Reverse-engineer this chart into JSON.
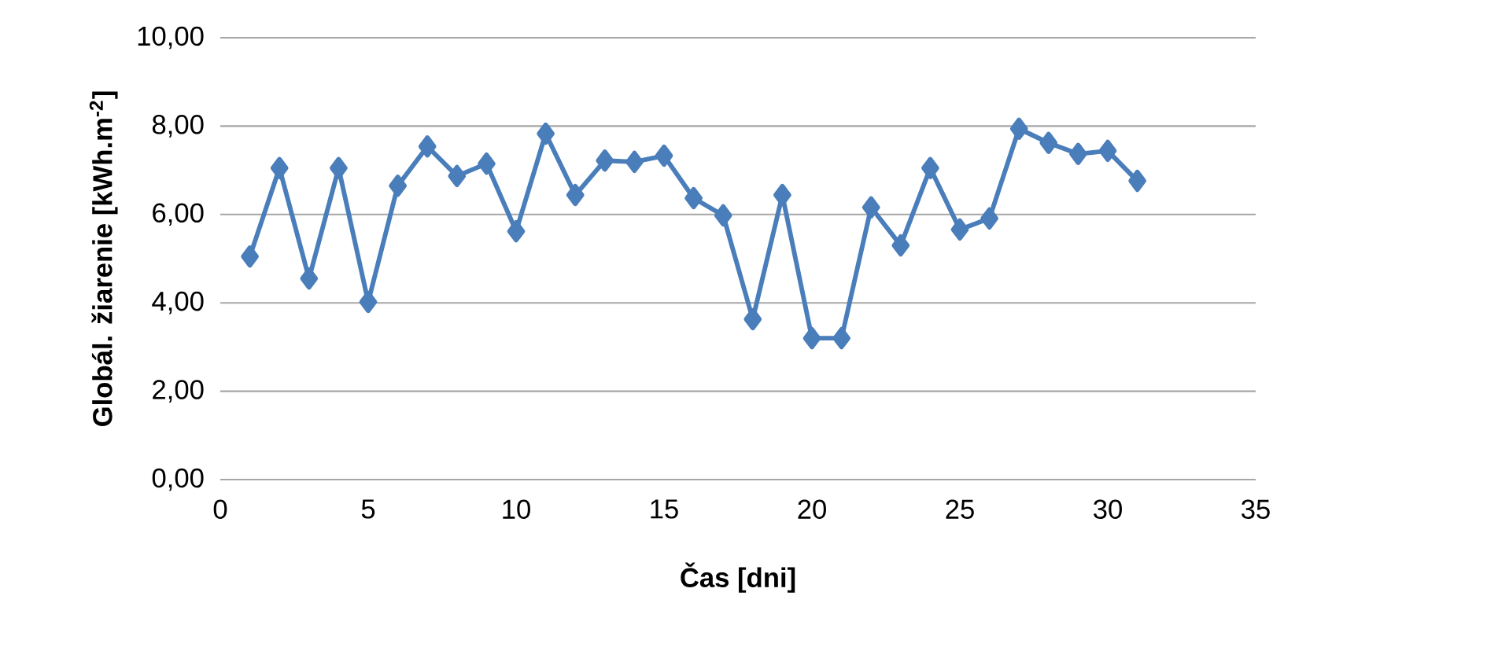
{
  "chart_data": {
    "type": "line",
    "xlabel": "Čas [dni]",
    "ylabel": "Globál. žiarenie [kWh.m$^{-2}$]",
    "x": [
      1,
      2,
      3,
      4,
      5,
      6,
      7,
      8,
      9,
      10,
      11,
      12,
      13,
      14,
      15,
      16,
      17,
      18,
      19,
      20,
      21,
      22,
      23,
      24,
      25,
      26,
      27,
      28,
      29,
      30,
      31
    ],
    "series": [
      {
        "color": "#4a7ebb",
        "values": [
          5.05,
          7.05,
          4.55,
          7.05,
          4.02,
          6.65,
          7.54,
          6.87,
          7.15,
          5.62,
          7.83,
          6.44,
          7.22,
          7.19,
          7.33,
          6.37,
          5.98,
          3.63,
          6.44,
          3.2,
          3.2,
          6.16,
          5.3,
          7.05,
          5.66,
          5.91,
          7.94,
          7.62,
          7.37,
          7.44,
          6.76
        ]
      }
    ],
    "xlim": [
      0,
      35
    ],
    "xticks": [
      0,
      5,
      10,
      15,
      20,
      25,
      30,
      35
    ],
    "ylim": [
      0,
      10
    ],
    "yticks": [
      {
        "value": 0,
        "label": "0,00"
      },
      {
        "value": 2,
        "label": "2,00"
      },
      {
        "value": 4,
        "label": "4,00"
      },
      {
        "value": 6,
        "label": "6,00"
      },
      {
        "value": 8,
        "label": "8,00"
      },
      {
        "value": 10,
        "label": "10,00"
      }
    ],
    "grid": "y",
    "marker": "diamond",
    "line_style": "solid"
  }
}
